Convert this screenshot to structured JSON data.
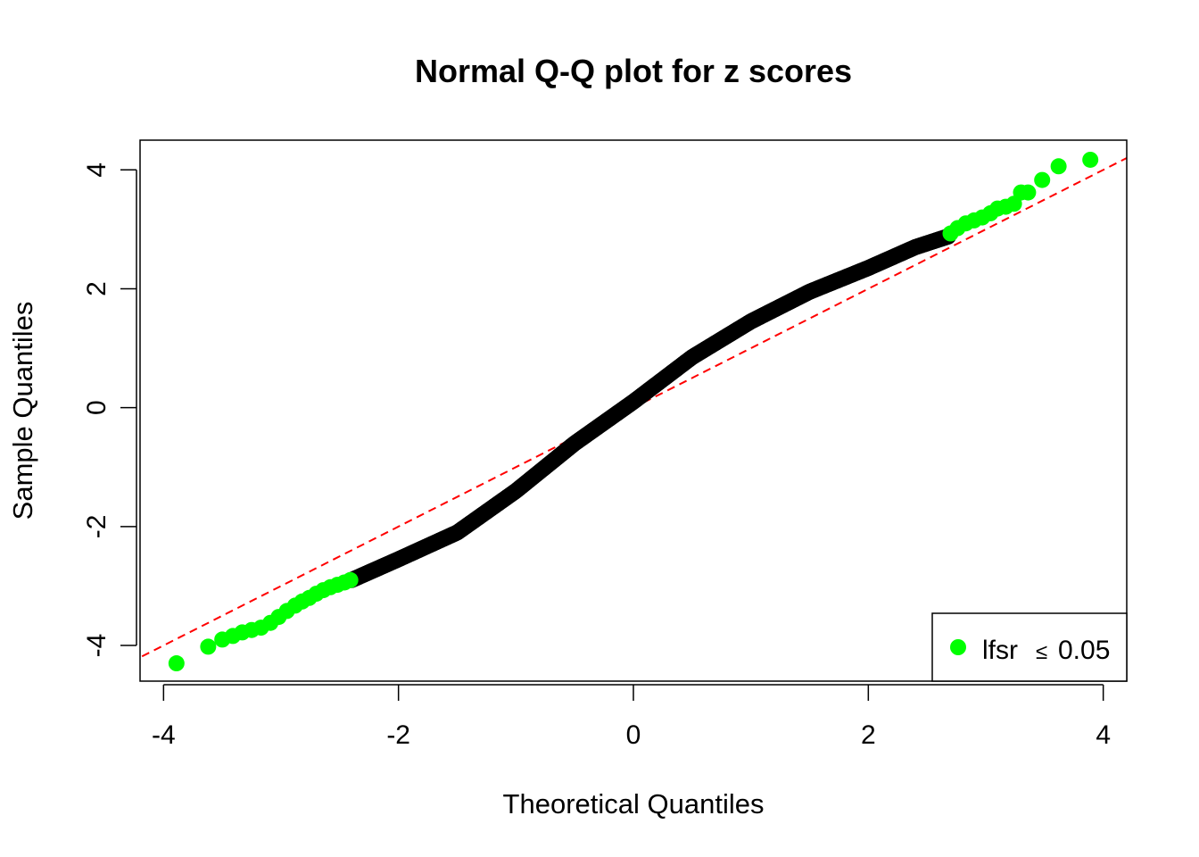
{
  "chart_data": {
    "type": "scatter",
    "title": "Normal Q-Q plot for z scores",
    "xlabel": "Theoretical Quantiles",
    "ylabel": "Sample Quantiles",
    "xlim": [
      -4.2,
      4.2
    ],
    "ylim": [
      -4.6,
      4.5
    ],
    "xticks": [
      -4,
      -2,
      0,
      2,
      4
    ],
    "xtick_labels": [
      "-4",
      "-2",
      "0",
      "2",
      "4"
    ],
    "yticks": [
      -4,
      -2,
      0,
      2,
      4
    ],
    "ytick_labels": [
      "-4",
      "-2",
      "0",
      "2",
      "4"
    ],
    "grid": false,
    "legend": {
      "position": "bottom-right",
      "label": "lfsr",
      "symbol": "≤",
      "value": "0.05"
    },
    "reference_line": {
      "style": "dashed",
      "color": "#ff0000",
      "intercept": 0,
      "slope": 1
    },
    "colors": {
      "highlight": "#00ff00",
      "other": "#000000",
      "reference": "#ff0000",
      "axes": "#000000"
    },
    "series": [
      {
        "color": "#000000",
        "points_x": [
          -2.4,
          -2.0,
          -1.5,
          -1.0,
          -0.5,
          0.0,
          0.5,
          1.0,
          1.5,
          2.0,
          2.4,
          2.68
        ],
        "points_y": [
          -2.9,
          -2.55,
          -2.1,
          -1.4,
          -0.6,
          0.1,
          0.85,
          1.45,
          1.95,
          2.35,
          2.7,
          2.88
        ]
      },
      {
        "name": "lfsr ≤ 0.05",
        "color": "#00ff00",
        "points_x": [
          -3.89,
          -3.62,
          -3.5,
          -3.41,
          -3.33,
          -3.25,
          -3.17,
          -3.09,
          -3.02,
          -2.95,
          -2.88,
          -2.82,
          -2.76,
          -2.7,
          -2.64,
          -2.58,
          -2.52,
          -2.46,
          -2.41,
          2.7,
          2.76,
          2.83,
          2.9,
          2.97,
          3.04,
          3.1,
          3.17,
          3.24,
          3.3,
          3.36,
          3.48,
          3.62,
          3.89
        ],
        "points_y": [
          -4.3,
          -4.02,
          -3.9,
          -3.84,
          -3.78,
          -3.74,
          -3.7,
          -3.62,
          -3.52,
          -3.42,
          -3.33,
          -3.26,
          -3.2,
          -3.13,
          -3.07,
          -3.02,
          -2.98,
          -2.94,
          -2.9,
          2.93,
          3.02,
          3.1,
          3.15,
          3.2,
          3.27,
          3.35,
          3.38,
          3.43,
          3.62,
          3.62,
          3.83,
          4.06,
          4.17
        ]
      }
    ]
  }
}
